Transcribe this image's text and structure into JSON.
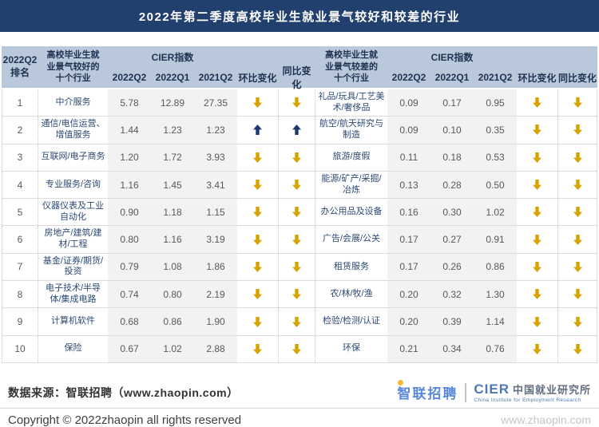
{
  "title_bar": {
    "title": "2022年第二季度高校毕业生就业景气较好和较差的行业"
  },
  "header": {
    "rank_line1": "2022Q2",
    "rank_line2": "排名",
    "good_industry_label": "高校毕业生就业景气较好的十个行业",
    "bad_industry_label": "高校毕业生就业景气较差的十个行业",
    "cier_label": "CIER指数",
    "col_2022q2": "2022Q2",
    "col_2022q1": "2022Q1",
    "col_2021q2": "2021Q2",
    "mom_label": "环比变化",
    "yoy_label": "同比变化"
  },
  "chart_data": [
    {
      "type": "table",
      "title": "高校毕业生就业景气较好的十个行业",
      "columns": [
        "2022Q2排名",
        "行业",
        "CIER指数 2022Q2",
        "CIER指数 2022Q1",
        "CIER指数 2021Q2",
        "环比变化",
        "同比变化"
      ],
      "rows": [
        {
          "rank": "1",
          "industry": "中介服务",
          "values": [
            "5.78",
            "12.89",
            "27.35"
          ],
          "mom": "down",
          "yoy": "down"
        },
        {
          "rank": "2",
          "industry": "通信/电信运营、增值服务",
          "values": [
            "1.44",
            "1.23",
            "1.23"
          ],
          "mom": "up",
          "yoy": "up"
        },
        {
          "rank": "3",
          "industry": "互联网/电子商务",
          "values": [
            "1.20",
            "1.72",
            "3.93"
          ],
          "mom": "down",
          "yoy": "down"
        },
        {
          "rank": "4",
          "industry": "专业服务/咨询",
          "values": [
            "1.16",
            "1.45",
            "3.41"
          ],
          "mom": "down",
          "yoy": "down"
        },
        {
          "rank": "5",
          "industry": "仪器仪表及工业自动化",
          "values": [
            "0.90",
            "1.18",
            "1.15"
          ],
          "mom": "down",
          "yoy": "down"
        },
        {
          "rank": "6",
          "industry": "房地产/建筑/建材/工程",
          "values": [
            "0.80",
            "1.16",
            "3.19"
          ],
          "mom": "down",
          "yoy": "down"
        },
        {
          "rank": "7",
          "industry": "基金/证券/期货/投资",
          "values": [
            "0.79",
            "1.08",
            "1.86"
          ],
          "mom": "down",
          "yoy": "down"
        },
        {
          "rank": "8",
          "industry": "电子技术/半导体/集成电路",
          "values": [
            "0.74",
            "0.80",
            "2.19"
          ],
          "mom": "down",
          "yoy": "down"
        },
        {
          "rank": "9",
          "industry": "计算机软件",
          "values": [
            "0.68",
            "0.86",
            "1.90"
          ],
          "mom": "down",
          "yoy": "down"
        },
        {
          "rank": "10",
          "industry": "保险",
          "values": [
            "0.67",
            "1.02",
            "2.88"
          ],
          "mom": "down",
          "yoy": "down"
        }
      ]
    },
    {
      "type": "table",
      "title": "高校毕业生就业景气较差的十个行业",
      "columns": [
        "行业",
        "CIER指数 2022Q2",
        "CIER指数 2022Q1",
        "CIER指数 2021Q2",
        "环比变化",
        "同比变化"
      ],
      "rows": [
        {
          "industry": "礼品/玩具/工艺美术/奢侈品",
          "values": [
            "0.09",
            "0.17",
            "0.95"
          ],
          "mom": "down",
          "yoy": "down"
        },
        {
          "industry": "航空/航天研究与制造",
          "values": [
            "0.09",
            "0.10",
            "0.35"
          ],
          "mom": "down",
          "yoy": "down"
        },
        {
          "industry": "旅游/度假",
          "values": [
            "0.11",
            "0.18",
            "0.53"
          ],
          "mom": "down",
          "yoy": "down"
        },
        {
          "industry": "能源/矿产/采掘/冶炼",
          "values": [
            "0.13",
            "0.28",
            "0.50"
          ],
          "mom": "down",
          "yoy": "down"
        },
        {
          "industry": "办公用品及设备",
          "values": [
            "0.16",
            "0.30",
            "1.02"
          ],
          "mom": "down",
          "yoy": "down"
        },
        {
          "industry": "广告/会展/公关",
          "values": [
            "0.17",
            "0.27",
            "0.91"
          ],
          "mom": "down",
          "yoy": "down"
        },
        {
          "industry": "租赁服务",
          "values": [
            "0.17",
            "0.26",
            "0.86"
          ],
          "mom": "down",
          "yoy": "down"
        },
        {
          "industry": "农/林/牧/渔",
          "values": [
            "0.20",
            "0.32",
            "1.30"
          ],
          "mom": "down",
          "yoy": "down"
        },
        {
          "industry": "检验/检测/认证",
          "values": [
            "0.20",
            "0.39",
            "1.14"
          ],
          "mom": "down",
          "yoy": "down"
        },
        {
          "industry": "环保",
          "values": [
            "0.21",
            "0.34",
            "0.76"
          ],
          "mom": "down",
          "yoy": "down"
        }
      ]
    }
  ],
  "footer": {
    "source": "数据来源：智联招聘（www.zhaopin.com）",
    "copyright": "Copyright © 2022zhaopin all rights reserved",
    "watermark": "www.zhaopin.com",
    "logo_zhaopin": "智联招聘",
    "logo_cier": "CIER",
    "logo_cier_cn": "中国就业研究所",
    "logo_cier_en": "China Institute for Employment Research"
  },
  "colors": {
    "title_bar_bg": "#21406E",
    "header_bg": "#B9C8DA",
    "header_text": "#1F3150",
    "industry_text": "#2C4A73",
    "value_text": "#595959",
    "value_col_bg": "#F2F2F2",
    "down_arrow": "#D7A300",
    "up_arrow": "#1B3A6B"
  }
}
